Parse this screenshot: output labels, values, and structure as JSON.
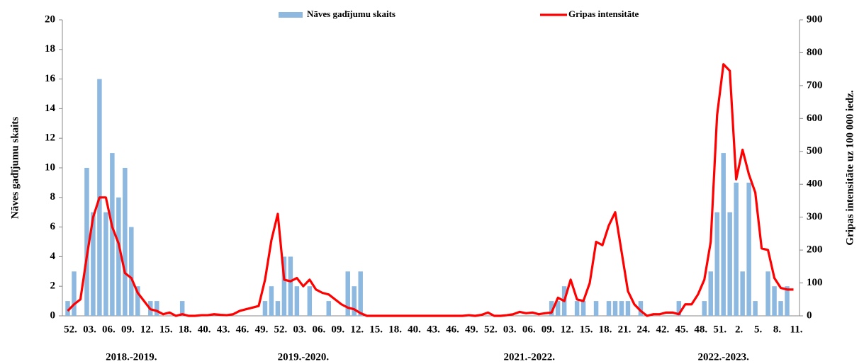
{
  "chart_data": {
    "type": "bar_line",
    "y_label": "Nāves gadījumu skaits",
    "y2_label": "Gripas intensitāte uz 100 000 iedz.",
    "seasons": [
      {
        "label": "2018.-2019.",
        "categories": [
          "52.",
          null,
          null,
          "03.",
          null,
          null,
          "06.",
          null,
          null,
          "09.",
          null,
          null,
          "12.",
          null,
          null,
          "15.",
          null,
          null,
          "18.",
          null,
          null
        ]
      },
      {
        "label": "2019.-2020.",
        "categories": [
          "40.",
          null,
          null,
          "43.",
          null,
          null,
          "46.",
          null,
          null,
          "49.",
          null,
          null,
          "52.",
          null,
          null,
          "03.",
          null,
          null,
          "06.",
          null,
          null,
          "09.",
          null,
          null,
          "12.",
          null,
          null,
          "15.",
          null,
          null,
          "18.",
          null,
          null
        ]
      },
      {
        "label": "2021.-2022.",
        "categories": [
          "40.",
          null,
          null,
          "43.",
          null,
          null,
          "46.",
          null,
          null,
          "49.",
          null,
          null,
          "52.",
          null,
          null,
          "03.",
          null,
          null,
          "06.",
          null,
          null,
          "09.",
          null,
          null,
          "12.",
          null,
          null,
          "15.",
          null,
          null,
          "18.",
          null,
          null,
          "21.",
          null,
          null,
          "24.",
          null
        ]
      },
      {
        "label": "2022.-2023.",
        "categories": [
          null,
          "42.",
          null,
          null,
          "45.",
          null,
          null,
          "48.",
          null,
          null,
          "51.",
          null,
          null,
          "2.",
          null,
          null,
          "5.",
          null,
          null,
          "8.",
          null,
          null,
          "11."
        ]
      }
    ],
    "series": [
      {
        "name": "Nāves gadījumu skaits",
        "type": "bar",
        "color": "#8db8e0",
        "axis": "y",
        "values": [
          1,
          3,
          0,
          10,
          7,
          16,
          7,
          11,
          8,
          10,
          6,
          2,
          0,
          1,
          1,
          0,
          0,
          0,
          1,
          0,
          0,
          0,
          0,
          0,
          0,
          0,
          0,
          0,
          0,
          0,
          0,
          1,
          2,
          1,
          4,
          4,
          2,
          0,
          2,
          0,
          0,
          1,
          0,
          0,
          3,
          2,
          3,
          0,
          0,
          0,
          0,
          0,
          0,
          0,
          0,
          0,
          0,
          0,
          0,
          0,
          0,
          0,
          0,
          0,
          0,
          0,
          0,
          0,
          0,
          0,
          0,
          0,
          0,
          0,
          0,
          0,
          1,
          1,
          2,
          0,
          1,
          1,
          0,
          1,
          0,
          1,
          1,
          1,
          1,
          0,
          1,
          0,
          0,
          0,
          0,
          0,
          1,
          0,
          0,
          0,
          1,
          3,
          7,
          11,
          7,
          9,
          3,
          9,
          1,
          0,
          3,
          2,
          1,
          2,
          0
        ]
      },
      {
        "name": "Gripas intensitāte",
        "type": "line",
        "color": "#ff0000",
        "axis": "y2",
        "values": [
          15,
          35,
          50,
          180,
          300,
          360,
          360,
          270,
          220,
          130,
          115,
          70,
          45,
          20,
          15,
          5,
          10,
          0,
          5,
          0,
          0,
          2,
          2,
          5,
          3,
          2,
          5,
          15,
          20,
          25,
          30,
          110,
          230,
          310,
          110,
          105,
          115,
          90,
          110,
          80,
          70,
          65,
          50,
          35,
          25,
          20,
          8,
          0,
          0,
          0,
          0,
          0,
          0,
          0,
          0,
          0,
          0,
          0,
          0,
          0,
          0,
          0,
          0,
          2,
          0,
          3,
          10,
          0,
          0,
          2,
          5,
          12,
          8,
          10,
          5,
          8,
          10,
          55,
          45,
          110,
          50,
          45,
          100,
          225,
          215,
          275,
          315,
          195,
          75,
          35,
          15,
          0,
          5,
          5,
          10,
          10,
          5,
          35,
          35,
          65,
          110,
          225,
          610,
          765,
          745,
          415,
          505,
          430,
          375,
          205,
          200,
          115,
          85,
          80,
          80
        ]
      }
    ],
    "ylim": [
      0,
      20
    ],
    "yticks": [
      0,
      2,
      4,
      6,
      8,
      10,
      12,
      14,
      16,
      18,
      20
    ],
    "y2lim": [
      0,
      900
    ],
    "y2ticks": [
      0,
      100,
      200,
      300,
      400,
      500,
      600,
      700,
      800,
      900
    ],
    "legend": "top",
    "grid": false
  }
}
